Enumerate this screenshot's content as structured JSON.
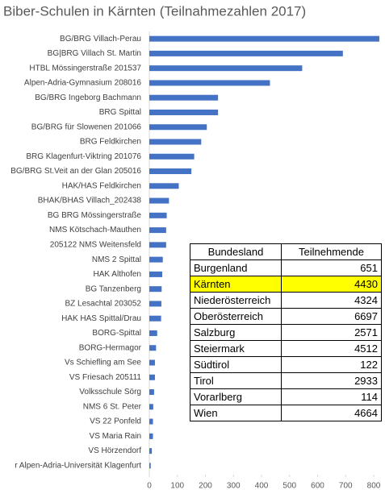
{
  "chart_data": {
    "type": "barh",
    "title": "Biber-Schulen in Kärnten (Teilnahmezahlen 2017)",
    "categories": [
      "BG/BRG Villach-Perau",
      "BG|BRG Villach St. Martin",
      "HTBL Mössingerstraße 201537",
      "Alpen-Adria-Gymnasium 208016",
      "BG/BRG Ingeborg Bachmann",
      "BRG Spittal",
      "BG/BRG für Slowenen 201066",
      "BRG Feldkirchen",
      "BRG Klagenfurt-Viktring 201076",
      "BG/BRG St.Veit an der Glan 205016",
      "HAK/HAS Feldkirchen",
      "BHAK/BHAS Villach_202438",
      "BG BRG Mössingerstraße",
      "NMS Kötschach-Mauthen",
      "205122 NMS Weitensfeld",
      "NMS 2 Spittal",
      "HAK Althofen",
      "BG Tanzenberg",
      "BZ Lesachtal 203052",
      "HAK HAS Spittal/Drau",
      "BORG-Spittal",
      "BORG-Hermagor",
      "Vs Schiefling am See",
      "VS Friesach 205111",
      "Volksschule Sörg",
      "NMS 6 St. Peter",
      "VS 22 Ponfeld",
      "VS Maria Rain",
      "VS Hörzendorf",
      "r Alpen-Adria-Universität Klagenfurt"
    ],
    "values": [
      820,
      690,
      545,
      430,
      245,
      245,
      205,
      185,
      160,
      150,
      105,
      70,
      62,
      60,
      60,
      48,
      46,
      44,
      43,
      42,
      28,
      24,
      20,
      20,
      17,
      14,
      13,
      13,
      9,
      5
    ],
    "color": "#4472c4",
    "xlim": [
      0,
      810
    ],
    "xticks": [
      0,
      100,
      200,
      300,
      400,
      500,
      600,
      700,
      800
    ],
    "grid": false
  },
  "table": {
    "headers": [
      "Bundesland",
      "Teilnehmende"
    ],
    "rows": [
      [
        "Burgenland",
        651
      ],
      [
        "Kärnten",
        4430
      ],
      [
        "Niederösterreich",
        4324
      ],
      [
        "Oberösterreich",
        6697
      ],
      [
        "Salzburg",
        2571
      ],
      [
        "Steiermark",
        4512
      ],
      [
        "Südtirol",
        122
      ],
      [
        "Tirol",
        2933
      ],
      [
        "Vorarlberg",
        114
      ],
      [
        "Wien",
        4664
      ]
    ],
    "highlight_row": 1,
    "highlight_color": "#ffff00"
  }
}
